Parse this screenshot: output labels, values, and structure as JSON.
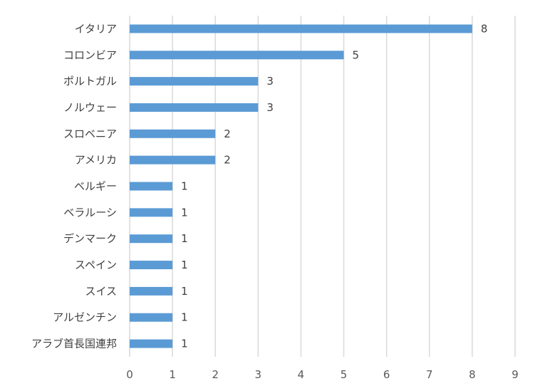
{
  "chart_data": {
    "type": "bar",
    "orientation": "horizontal",
    "categories": [
      "イタリア",
      "コロンビア",
      "ポルトガル",
      "ノルウェー",
      "スロベニア",
      "アメリカ",
      "ベルギー",
      "ベラルーシ",
      "デンマーク",
      "スペイン",
      "スイス",
      "アルゼンチン",
      "アラブ首長国連邦"
    ],
    "values": [
      8,
      5,
      3,
      3,
      2,
      2,
      1,
      1,
      1,
      1,
      1,
      1,
      1
    ],
    "xlim": [
      0,
      9
    ],
    "xticks": [
      "0",
      "1",
      "2",
      "3",
      "4",
      "5",
      "6",
      "7",
      "8",
      "9"
    ],
    "bar_color": "#5b9bd5",
    "grid": true,
    "data_labels": true
  }
}
